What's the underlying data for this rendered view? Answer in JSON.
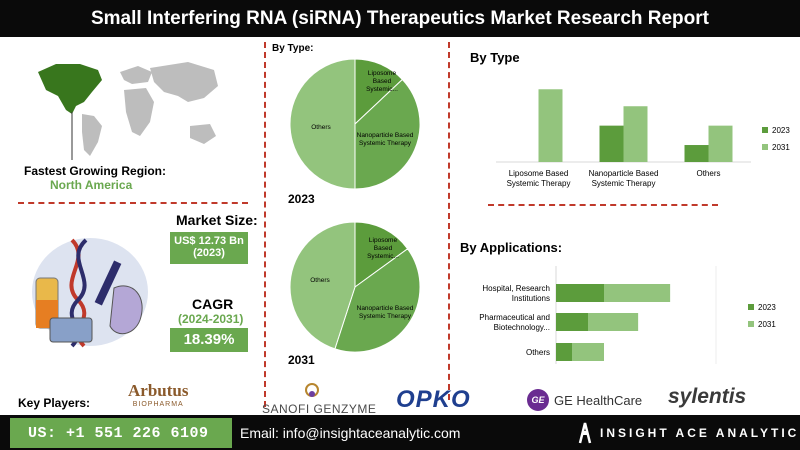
{
  "title": "Small Interfering RNA (siRNA) Therapeutics Market Research Report",
  "region": {
    "label": "Fastest Growing Region:",
    "value": "North America"
  },
  "market_size": {
    "label": "Market Size:",
    "value": "US$ 12.73 Bn",
    "year": "(2023)"
  },
  "cagr": {
    "label": "CAGR",
    "period": "(2024-2031)",
    "value": "18.39%"
  },
  "pie_section": {
    "heading": "By Type:",
    "year1": "2023",
    "year2": "2031"
  },
  "type_bar": {
    "heading": "By Type"
  },
  "app_bar": {
    "heading": "By Applications:"
  },
  "key_players": {
    "label": "Key Players:",
    "arbutus": "Arbutus",
    "arbutus_sub": "BIOPHARMA",
    "sanofi": "SANOFI GENZYME",
    "opko": "OPKO",
    "ge": "GE HealthCare",
    "ge_mark": "GE",
    "sylentis": "sylentis"
  },
  "footer": {
    "phone": "US: +1 551 226 6109",
    "email": "Email: info@insightaceanalytic.com",
    "brand": "INSIGHT ACE ANALYTIC"
  },
  "colors": {
    "dark_green": "#5c9c3c",
    "light_green": "#93c47d",
    "accent_red": "#c0392b"
  },
  "chart_data": [
    {
      "type": "pie",
      "title": "2023",
      "labels": [
        "Liposome Based Systemic...",
        "Nanoparticle Based Systemic Therapy",
        "Others"
      ],
      "values": [
        13,
        37,
        50
      ],
      "colors": [
        "#5c9c3c",
        "#6aa84f",
        "#93c47d"
      ]
    },
    {
      "type": "pie",
      "title": "2031",
      "labels": [
        "Liposome Based Systemic...",
        "Nanoparticle Based Systemic Therapy",
        "Others"
      ],
      "values": [
        15,
        40,
        45
      ],
      "colors": [
        "#5c9c3c",
        "#6aa84f",
        "#93c47d"
      ]
    },
    {
      "type": "bar",
      "title": "By Type",
      "categories": [
        "Liposome Based Systemic Therapy",
        "Nanoparticle Based Systemic Therapy",
        "Others"
      ],
      "series": [
        {
          "name": "2023",
          "values": [
            0,
            30,
            14
          ]
        },
        {
          "name": "2031",
          "values": [
            60,
            46,
            30
          ]
        }
      ],
      "legend": "right"
    },
    {
      "type": "bar",
      "orientation": "horizontal",
      "title": "By Applications:",
      "categories": [
        "Hospital, Research Institutions",
        "Pharmaceutical and Biotechnology...",
        "Others"
      ],
      "series": [
        {
          "name": "2023",
          "values": [
            45,
            30,
            15
          ]
        },
        {
          "name": "2031",
          "values": [
            62,
            47,
            30
          ]
        }
      ],
      "legend": "right"
    }
  ]
}
